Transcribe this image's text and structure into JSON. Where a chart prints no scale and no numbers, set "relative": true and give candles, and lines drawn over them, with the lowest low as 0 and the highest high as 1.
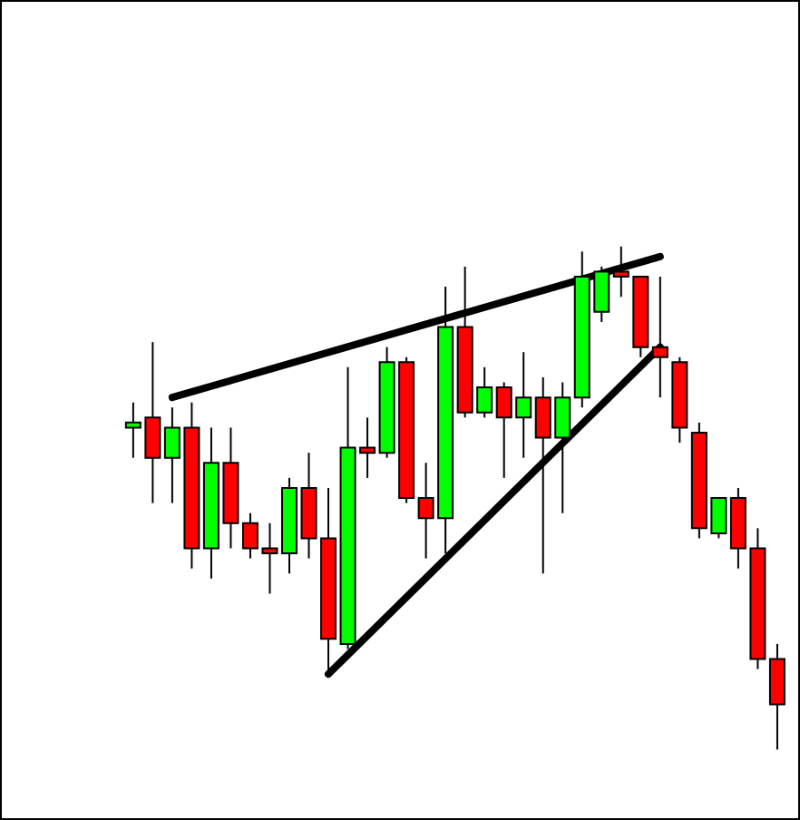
{
  "chart_data": {
    "type": "candlestick",
    "relative": true,
    "grid": false,
    "categories": [
      null,
      null,
      null,
      null,
      null,
      null,
      null,
      null,
      null,
      null,
      null,
      null,
      null,
      null,
      null,
      null,
      null,
      null,
      null,
      null,
      null,
      null,
      null,
      null,
      null,
      null,
      null,
      null,
      null,
      null,
      null,
      null,
      null,
      null
    ],
    "ohlc": [
      [
        0.64,
        0.69,
        0.58,
        0.65
      ],
      [
        0.66,
        0.81,
        0.49,
        0.58
      ],
      [
        0.58,
        0.68,
        0.49,
        0.64
      ],
      [
        0.64,
        0.69,
        0.36,
        0.4
      ],
      [
        0.4,
        0.64,
        0.34,
        0.57
      ],
      [
        0.57,
        0.64,
        0.4,
        0.45
      ],
      [
        0.45,
        0.47,
        0.38,
        0.4
      ],
      [
        0.4,
        0.45,
        0.31,
        0.39
      ],
      [
        0.39,
        0.54,
        0.35,
        0.52
      ],
      [
        0.52,
        0.59,
        0.38,
        0.42
      ],
      [
        0.42,
        0.52,
        0.15,
        0.22
      ],
      [
        0.21,
        0.76,
        0.2,
        0.6
      ],
      [
        0.6,
        0.66,
        0.54,
        0.59
      ],
      [
        0.59,
        0.8,
        0.58,
        0.77
      ],
      [
        0.77,
        0.78,
        0.49,
        0.5
      ],
      [
        0.5,
        0.57,
        0.38,
        0.46
      ],
      [
        0.46,
        0.92,
        0.39,
        0.84
      ],
      [
        0.84,
        0.96,
        0.66,
        0.67
      ],
      [
        0.67,
        0.76,
        0.66,
        0.72
      ],
      [
        0.72,
        0.73,
        0.54,
        0.66
      ],
      [
        0.66,
        0.79,
        0.58,
        0.7
      ],
      [
        0.7,
        0.74,
        0.35,
        0.62
      ],
      [
        0.62,
        0.73,
        0.47,
        0.7
      ],
      [
        0.7,
        0.99,
        0.68,
        0.94
      ],
      [
        0.87,
        0.96,
        0.85,
        0.95
      ],
      [
        0.95,
        1.0,
        0.9,
        0.94
      ],
      [
        0.94,
        0.94,
        0.78,
        0.8
      ],
      [
        0.8,
        0.94,
        0.7,
        0.78
      ],
      [
        0.77,
        0.78,
        0.61,
        0.64
      ],
      [
        0.63,
        0.65,
        0.42,
        0.44
      ],
      [
        0.43,
        0.5,
        0.42,
        0.5
      ],
      [
        0.5,
        0.52,
        0.36,
        0.4
      ],
      [
        0.4,
        0.44,
        0.16,
        0.18
      ],
      [
        0.18,
        0.21,
        0.0,
        0.09
      ]
    ],
    "colors": [
      "#00ff00",
      "#ff0000",
      "#00ff00",
      "#ff0000",
      "#00ff00",
      "#ff0000",
      "#ff0000",
      "#ff0000",
      "#00ff00",
      "#ff0000",
      "#ff0000",
      "#00ff00",
      "#ff0000",
      "#00ff00",
      "#ff0000",
      "#ff0000",
      "#00ff00",
      "#ff0000",
      "#00ff00",
      "#ff0000",
      "#00ff00",
      "#ff0000",
      "#00ff00",
      "#00ff00",
      "#00ff00",
      "#ff0000",
      "#ff0000",
      "#ff0000",
      "#ff0000",
      "#ff0000",
      "#00ff00",
      "#ff0000",
      "#ff0000",
      "#ff0000"
    ],
    "series": [
      {
        "type": "line",
        "color": "#000000",
        "values": [
          null,
          null,
          0.7,
          null,
          null,
          null,
          null,
          null,
          null,
          null,
          null,
          null,
          null,
          null,
          null,
          null,
          null,
          null,
          null,
          null,
          null,
          null,
          null,
          null,
          null,
          null,
          null,
          0.98,
          null,
          null,
          null,
          null,
          null,
          null
        ]
      },
      {
        "type": "line",
        "color": "#000000",
        "values": [
          null,
          null,
          null,
          null,
          null,
          null,
          null,
          null,
          null,
          null,
          0.15,
          null,
          null,
          null,
          null,
          null,
          null,
          null,
          null,
          null,
          null,
          null,
          null,
          null,
          null,
          null,
          null,
          0.8,
          null,
          null,
          null,
          null,
          null,
          null
        ]
      }
    ]
  }
}
